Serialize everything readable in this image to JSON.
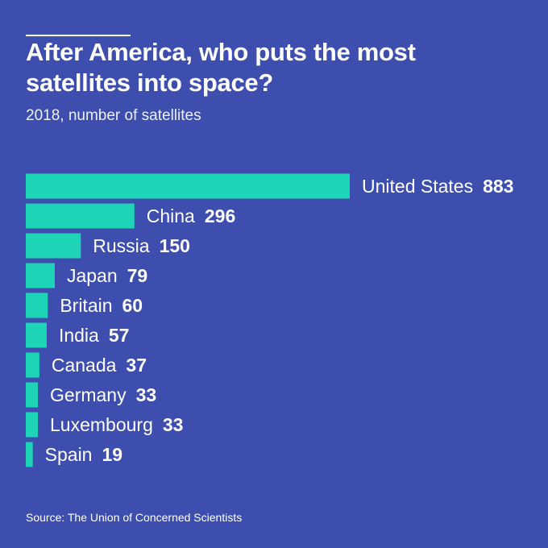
{
  "header": {
    "title": "After America, who puts the most satellites into space?",
    "subtitle": "2018, number of satellites"
  },
  "footer": {
    "source": "Source: The Union of Concerned Scientists"
  },
  "colors": {
    "background": "#3d4eae",
    "bar": "#1ed4b7",
    "text": "#ffffff"
  },
  "chart_data": {
    "type": "bar",
    "orientation": "horizontal",
    "title": "After America, who puts the most satellites into space?",
    "subtitle": "2018, number of satellites",
    "xlabel": "",
    "ylabel": "",
    "categories": [
      "United States",
      "China",
      "Russia",
      "Japan",
      "Britain",
      "India",
      "Canada",
      "Germany",
      "Luxembourg",
      "Spain"
    ],
    "values": [
      883,
      296,
      150,
      79,
      60,
      57,
      37,
      33,
      33,
      19
    ],
    "xlim": [
      0,
      883
    ],
    "grid": false,
    "legend": "none"
  }
}
